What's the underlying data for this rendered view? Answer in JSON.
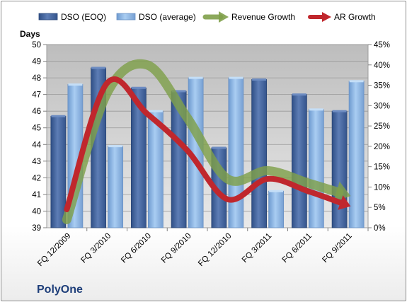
{
  "chart_data": {
    "type": "bar",
    "company": "PolyOne",
    "ylabel": "Days",
    "categories": [
      "FQ 12/2009",
      "FQ 3/2010",
      "FQ 6/2010",
      "FQ 9/2010",
      "FQ 12/2010",
      "FQ 3/2011",
      "FQ 6/2011",
      "FQ 9/2011"
    ],
    "left_axis": {
      "min": 39,
      "max": 50,
      "ticks": [
        39,
        40,
        41,
        42,
        43,
        44,
        45,
        46,
        47,
        48,
        49,
        50
      ]
    },
    "right_axis": {
      "min": 0,
      "max": 45,
      "ticks": [
        "0%",
        "5%",
        "10%",
        "15%",
        "20%",
        "25%",
        "30%",
        "35%",
        "40%",
        "45%"
      ]
    },
    "grid": true,
    "legend_position": "top",
    "series": [
      {
        "name": "DSO (EOQ)",
        "type": "bar",
        "axis": "left",
        "color": "#4f6ea8",
        "values": [
          45.7,
          48.6,
          47.4,
          47.2,
          43.8,
          47.9,
          47.0,
          46.0
        ]
      },
      {
        "name": "DSO (average)",
        "type": "bar",
        "axis": "left",
        "color": "#8fb8e6",
        "values": [
          47.6,
          43.9,
          46.0,
          48.0,
          48.0,
          41.2,
          46.1,
          47.8
        ]
      },
      {
        "name": "Revenue Growth",
        "type": "line",
        "axis": "right",
        "unit": "%",
        "color": "#7fa04a",
        "values": [
          2,
          33,
          40,
          27,
          12,
          14,
          11,
          8
        ]
      },
      {
        "name": "AR Growth",
        "type": "line",
        "axis": "right",
        "unit": "%",
        "color": "#c0272d",
        "values": [
          4.5,
          35.5,
          28,
          19,
          7,
          12,
          9,
          5.5
        ]
      }
    ]
  }
}
